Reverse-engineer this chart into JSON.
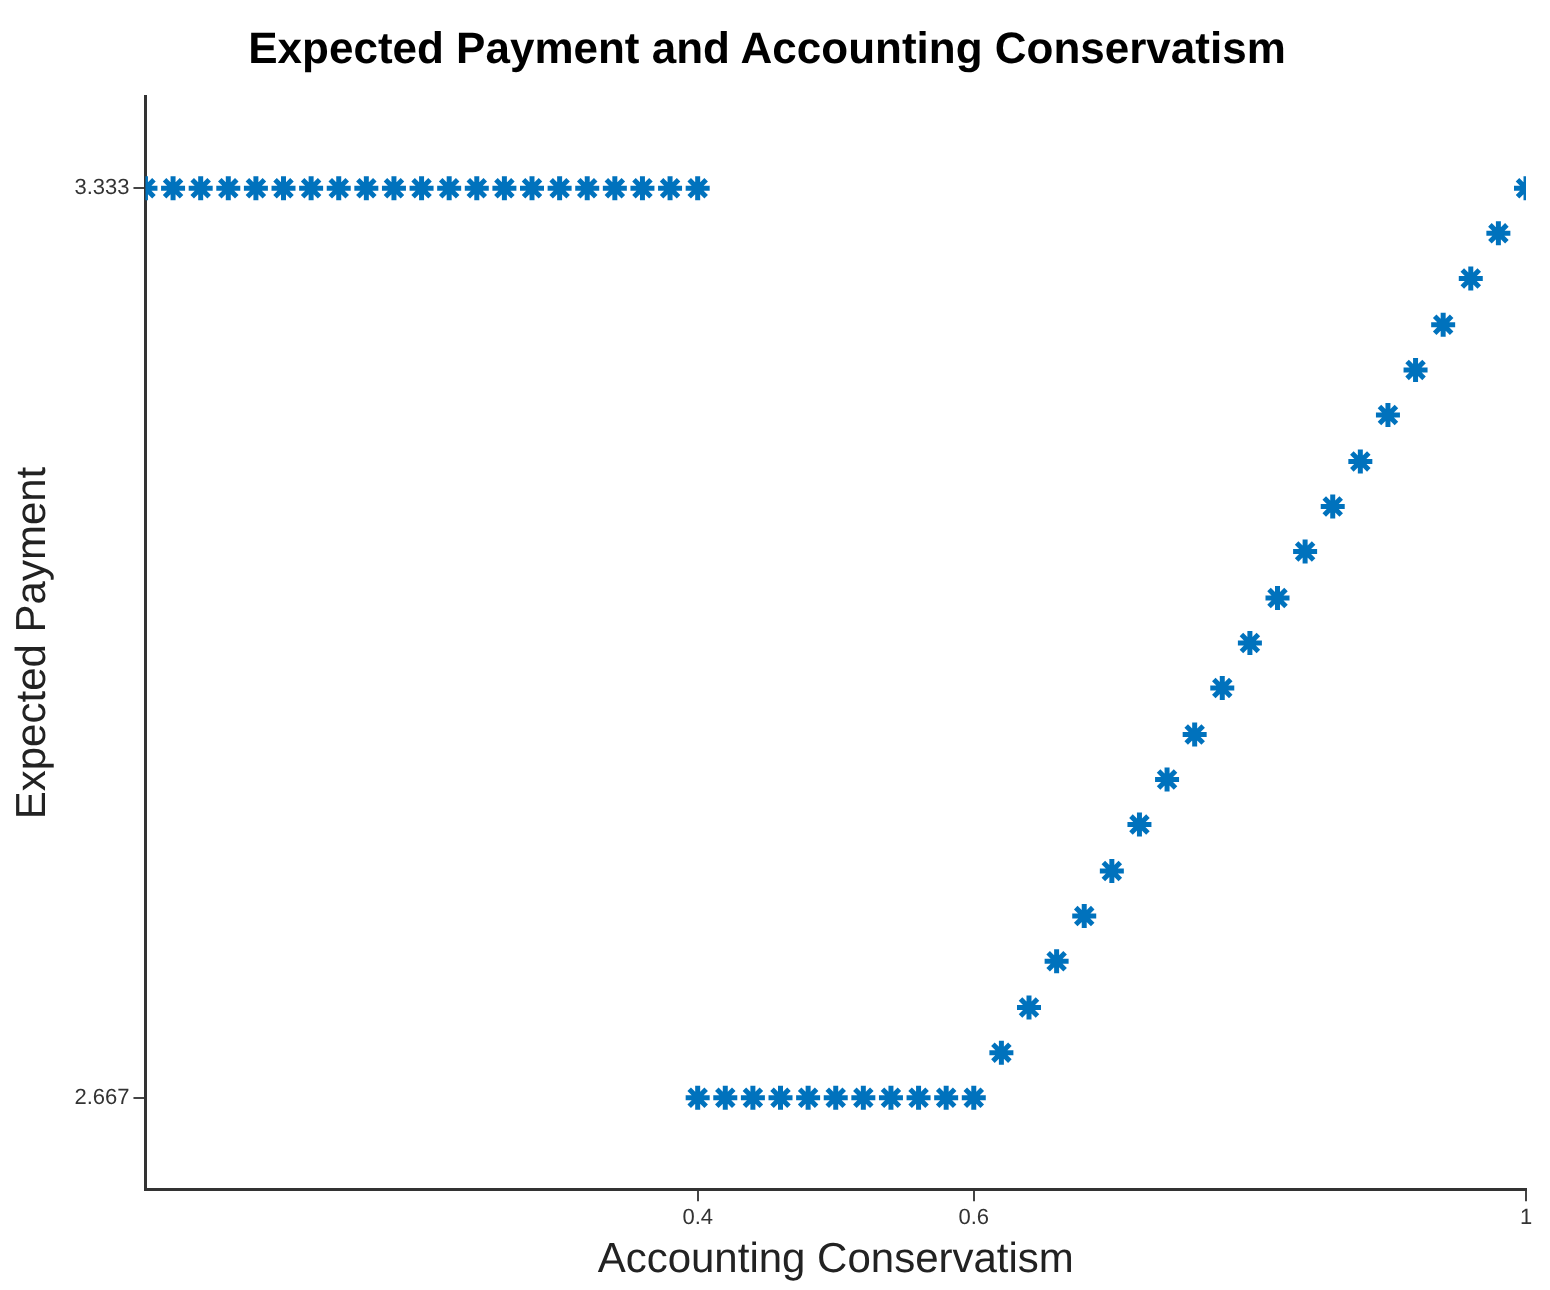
{
  "chart_data": {
    "type": "scatter",
    "title": "Expected Payment and Accounting Conservatism",
    "xlabel": "Accounting Conservatism",
    "ylabel": "Expected Payment",
    "x": [
      0,
      0.02,
      0.04,
      0.06,
      0.08,
      0.1,
      0.12,
      0.14,
      0.16,
      0.18,
      0.2,
      0.22,
      0.24,
      0.26,
      0.28,
      0.3,
      0.32,
      0.34,
      0.36,
      0.38,
      0.4,
      0.4,
      0.42,
      0.44,
      0.46,
      0.48,
      0.5,
      0.52,
      0.54,
      0.56,
      0.58,
      0.6,
      0.62,
      0.64,
      0.66,
      0.68,
      0.7,
      0.72,
      0.74,
      0.76,
      0.78,
      0.8,
      0.82,
      0.84,
      0.86,
      0.88,
      0.9,
      0.92,
      0.94,
      0.96,
      0.98,
      1
    ],
    "values": [
      3.333,
      3.333,
      3.333,
      3.333,
      3.333,
      3.333,
      3.333,
      3.333,
      3.333,
      3.333,
      3.333,
      3.333,
      3.333,
      3.333,
      3.333,
      3.333,
      3.333,
      3.333,
      3.333,
      3.333,
      3.333,
      2.667,
      2.667,
      2.667,
      2.667,
      2.667,
      2.667,
      2.667,
      2.667,
      2.667,
      2.667,
      2.667,
      2.7,
      2.733,
      2.767,
      2.8,
      2.833,
      2.867,
      2.9,
      2.933,
      2.967,
      3.0,
      3.033,
      3.067,
      3.1,
      3.133,
      3.167,
      3.2,
      3.233,
      3.267,
      3.3,
      3.333
    ],
    "color": "#0072bd",
    "marker": "cross",
    "grid": false,
    "legend": false,
    "xlim": [
      0,
      1
    ],
    "xticks": [
      0.4,
      0.6,
      1
    ],
    "ylim": [
      2.6,
      3.4
    ],
    "yticks": [
      2.667,
      3.333
    ]
  }
}
